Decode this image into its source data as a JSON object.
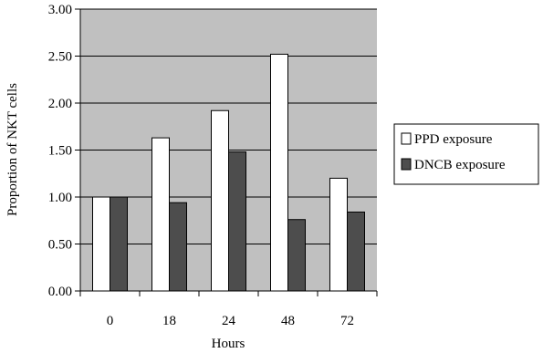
{
  "chart_data": {
    "type": "bar",
    "title": "",
    "xlabel": "Hours",
    "ylabel": "Proportion of NKT cells",
    "categories": [
      "0",
      "18",
      "24",
      "48",
      "72"
    ],
    "series": [
      {
        "name": "PPD exposure",
        "values": [
          1.0,
          1.63,
          1.92,
          2.52,
          1.2
        ],
        "color": "#ffffff"
      },
      {
        "name": "DNCB exposure",
        "values": [
          1.0,
          0.94,
          1.48,
          0.76,
          0.84
        ],
        "color": "#4d4d4d"
      }
    ],
    "ylim": [
      0,
      3
    ],
    "yticks": [
      "0.00",
      "0.50",
      "1.00",
      "1.50",
      "2.00",
      "2.50",
      "3.00"
    ],
    "grid": true,
    "plot_background": "#c0c0c0",
    "legend_position": "right"
  }
}
